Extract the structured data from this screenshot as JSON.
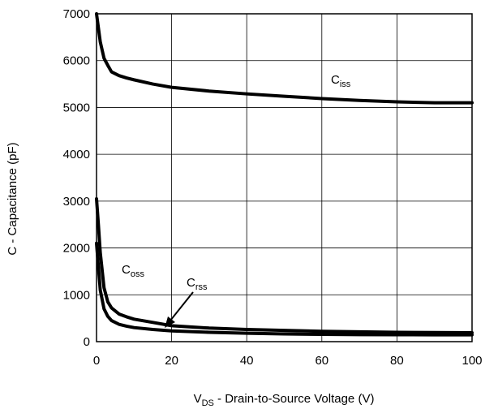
{
  "chart_data": {
    "type": "line",
    "xlabel": {
      "main": "V",
      "sub": "DS",
      "rest": " - Drain-to-Source Voltage (V)"
    },
    "ylabel": "C - Capacitance (pF)",
    "xlim": [
      0,
      100
    ],
    "ylim": [
      0,
      7000
    ],
    "x_ticks": [
      0,
      20,
      40,
      60,
      80,
      100
    ],
    "y_ticks": [
      0,
      1000,
      2000,
      3000,
      4000,
      5000,
      6000,
      7000
    ],
    "grid": true,
    "line_color": "#000000",
    "series": [
      {
        "name": "Ciss",
        "label_main": "C",
        "label_sub": "iss",
        "points": [
          [
            0,
            7000
          ],
          [
            0.5,
            6700
          ],
          [
            1,
            6400
          ],
          [
            2,
            6050
          ],
          [
            3,
            5900
          ],
          [
            4,
            5760
          ],
          [
            6,
            5680
          ],
          [
            8,
            5630
          ],
          [
            10,
            5590
          ],
          [
            15,
            5500
          ],
          [
            20,
            5430
          ],
          [
            30,
            5350
          ],
          [
            40,
            5290
          ],
          [
            50,
            5240
          ],
          [
            60,
            5190
          ],
          [
            70,
            5150
          ],
          [
            80,
            5120
          ],
          [
            90,
            5100
          ],
          [
            100,
            5100
          ]
        ]
      },
      {
        "name": "Coss",
        "label_main": "C",
        "label_sub": "oss",
        "points": [
          [
            0,
            3050
          ],
          [
            0.5,
            2500
          ],
          [
            1,
            1900
          ],
          [
            2,
            1150
          ],
          [
            3,
            850
          ],
          [
            4,
            720
          ],
          [
            6,
            590
          ],
          [
            8,
            530
          ],
          [
            10,
            480
          ],
          [
            15,
            410
          ],
          [
            20,
            340
          ],
          [
            30,
            290
          ],
          [
            40,
            260
          ],
          [
            50,
            240
          ],
          [
            60,
            220
          ],
          [
            70,
            210
          ],
          [
            80,
            200
          ],
          [
            90,
            195
          ],
          [
            100,
            190
          ]
        ]
      },
      {
        "name": "Crss",
        "label_main": "C",
        "label_sub": "rss",
        "points": [
          [
            0,
            2100
          ],
          [
            0.5,
            1600
          ],
          [
            1,
            1100
          ],
          [
            2,
            700
          ],
          [
            3,
            540
          ],
          [
            4,
            450
          ],
          [
            6,
            370
          ],
          [
            8,
            330
          ],
          [
            10,
            300
          ],
          [
            15,
            260
          ],
          [
            20,
            230
          ],
          [
            30,
            200
          ],
          [
            40,
            180
          ],
          [
            50,
            165
          ],
          [
            60,
            155
          ],
          [
            70,
            150
          ],
          [
            80,
            148
          ],
          [
            90,
            146
          ],
          [
            100,
            145
          ]
        ]
      }
    ]
  }
}
